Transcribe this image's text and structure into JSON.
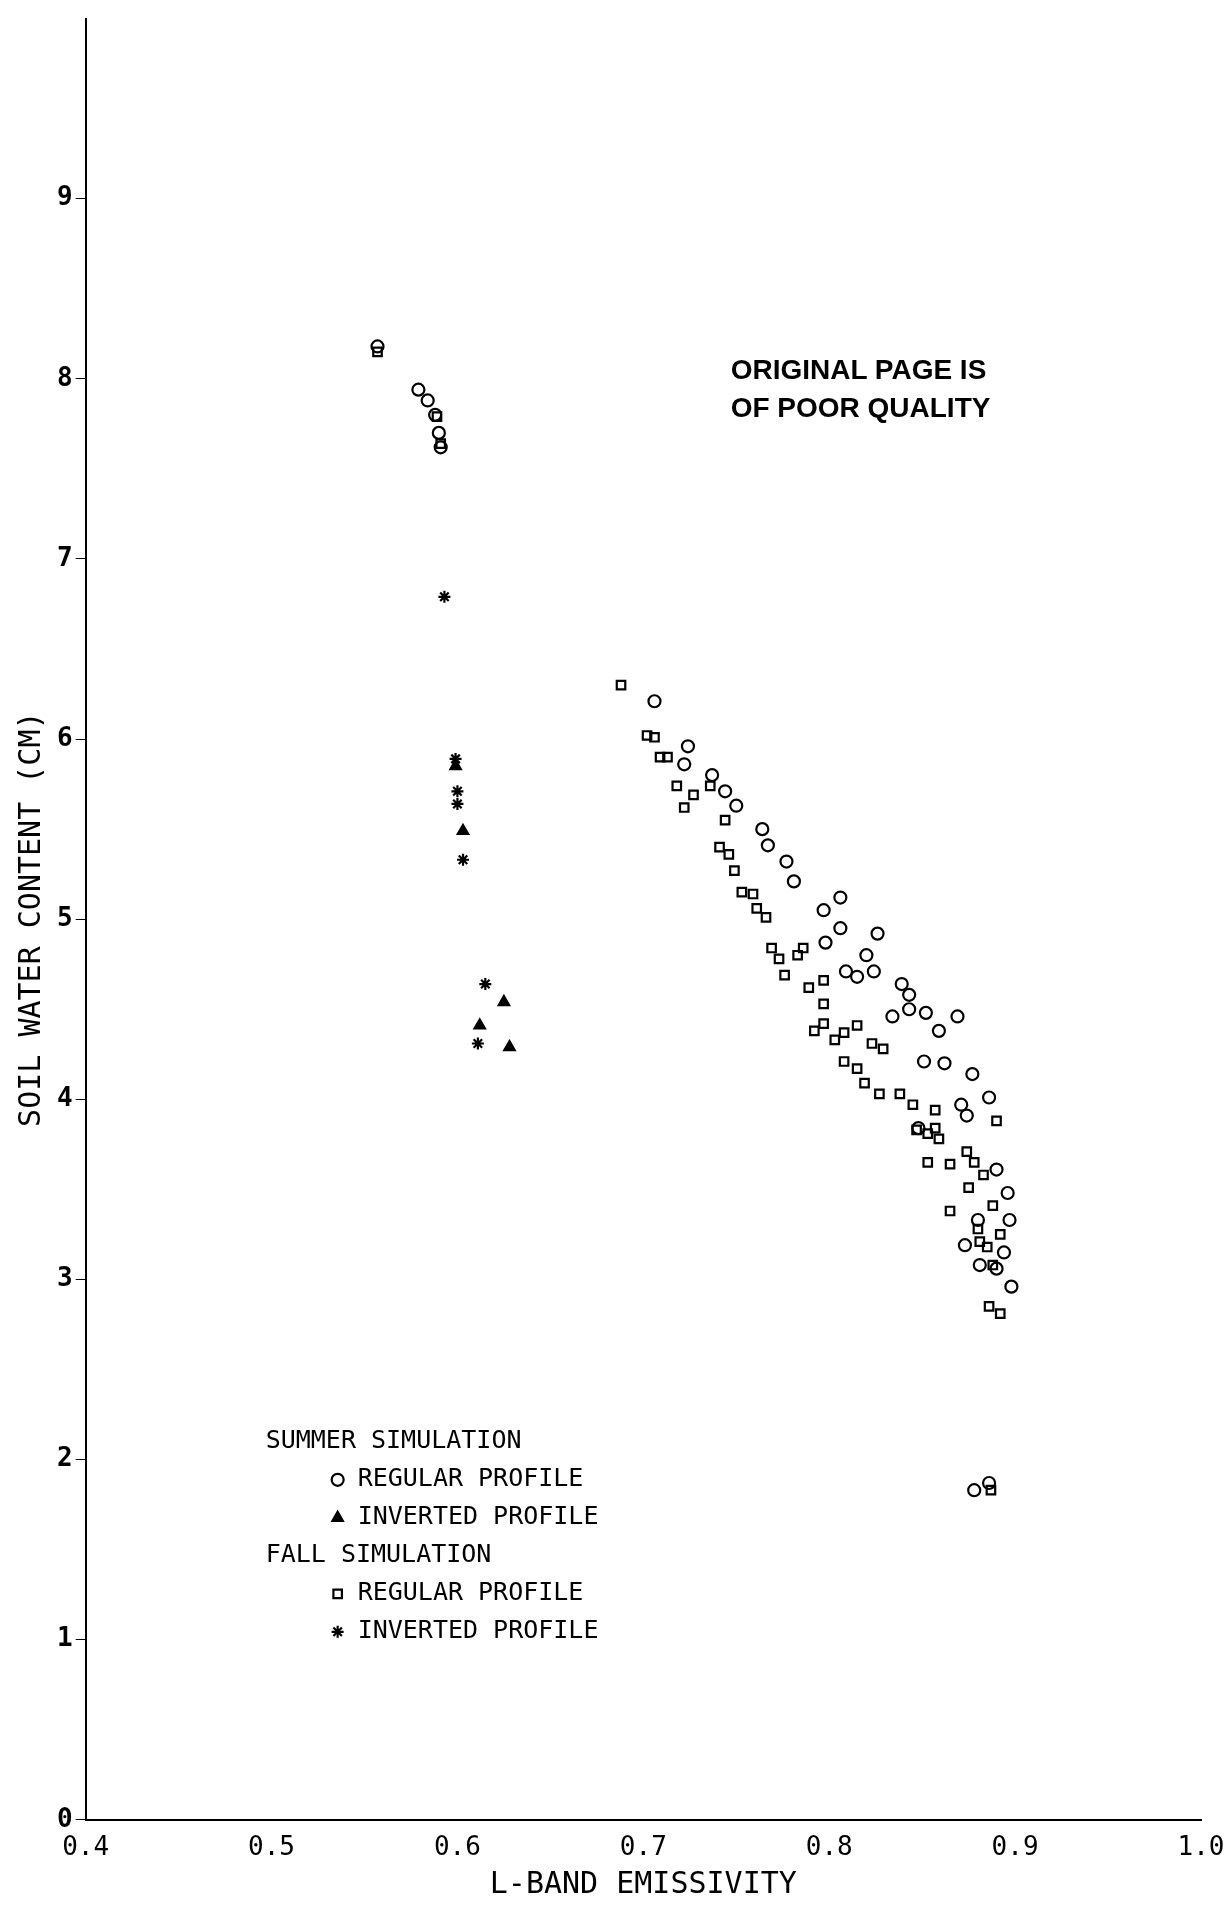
{
  "chart_data": {
    "type": "scatter",
    "xlabel": "L-BAND EMISSIVITY",
    "ylabel": "SOIL WATER CONTENT (CM)",
    "xlim": [
      0.4,
      1.0
    ],
    "xticks": [
      0.4,
      0.5,
      0.6,
      0.7,
      0.8,
      0.9,
      {
        "value": 1.0,
        "label": "1.0"
      }
    ],
    "ylim": [
      0,
      10
    ],
    "yticks": [
      0,
      1,
      2,
      3,
      4,
      5,
      6,
      7,
      8,
      9
    ],
    "grid": false,
    "legend": "bottom left",
    "annotations": [
      "SUMMER SIMULATION",
      "FALL SIMULATION",
      "ORIGINAL PAGE IS OF POOR QUALITY"
    ],
    "series": [
      {
        "name": "REGULAR PROFILE",
        "color": "#000000",
        "marker": "circle",
        "x": [
          0.557,
          0.579,
          0.584,
          0.588,
          0.59,
          0.591,
          0.706,
          0.724,
          0.722,
          0.737,
          0.744,
          0.75,
          0.764,
          0.767,
          0.777,
          0.781,
          0.806,
          0.797,
          0.806,
          0.798,
          0.826,
          0.82,
          0.809,
          0.824,
          0.815,
          0.839,
          0.843,
          0.834,
          0.843,
          0.852,
          0.869,
          0.859,
          0.851,
          0.862,
          0.877,
          0.871,
          0.848,
          0.874,
          0.886,
          0.89,
          0.896,
          0.897,
          0.894,
          0.89,
          0.898,
          0.881,
          0.878,
          0.886,
          0.873,
          0.88
        ],
        "values": [
          8.18,
          7.94,
          7.88,
          7.8,
          7.7,
          7.62,
          6.21,
          5.96,
          5.86,
          5.8,
          5.71,
          5.63,
          5.5,
          5.41,
          5.32,
          5.21,
          5.12,
          5.05,
          4.95,
          4.87,
          4.92,
          4.8,
          4.71,
          4.71,
          4.68,
          4.64,
          4.58,
          4.46,
          4.5,
          4.48,
          4.46,
          4.38,
          4.21,
          4.2,
          4.14,
          3.97,
          3.84,
          3.91,
          4.01,
          3.61,
          3.48,
          3.33,
          3.15,
          3.06,
          2.96,
          3.08,
          1.83,
          1.87,
          3.19,
          3.33
        ]
      },
      {
        "name": "INVERTED PROFILE",
        "color": "#000000",
        "marker": "triangle",
        "x": [
          0.599,
          0.603,
          0.612,
          0.625,
          0.628
        ],
        "values": [
          5.85,
          5.49,
          4.41,
          4.54,
          4.29
        ]
      },
      {
        "name": "REGULAR PROFILE",
        "color": "#000000",
        "marker": "square",
        "x": [
          0.557,
          0.589,
          0.591,
          0.688,
          0.702,
          0.706,
          0.709,
          0.713,
          0.718,
          0.722,
          0.727,
          0.736,
          0.744,
          0.741,
          0.746,
          0.749,
          0.753,
          0.759,
          0.761,
          0.766,
          0.769,
          0.773,
          0.776,
          0.783,
          0.786,
          0.789,
          0.797,
          0.797,
          0.792,
          0.797,
          0.803,
          0.808,
          0.815,
          0.808,
          0.815,
          0.819,
          0.827,
          0.823,
          0.829,
          0.838,
          0.845,
          0.847,
          0.853,
          0.857,
          0.857,
          0.859,
          0.853,
          0.865,
          0.865,
          0.874,
          0.878,
          0.883,
          0.875,
          0.88,
          0.885,
          0.888,
          0.886,
          0.892,
          0.89,
          0.888,
          0.881,
          0.892,
          0.887
        ],
        "values": [
          8.15,
          7.79,
          7.64,
          6.3,
          6.02,
          6.01,
          5.9,
          5.9,
          5.74,
          5.62,
          5.69,
          5.74,
          5.55,
          5.4,
          5.36,
          5.27,
          5.15,
          5.14,
          5.06,
          5.01,
          4.84,
          4.78,
          4.69,
          4.8,
          4.84,
          4.62,
          4.66,
          4.53,
          4.38,
          4.42,
          4.33,
          4.37,
          4.41,
          4.21,
          4.17,
          4.09,
          4.03,
          4.31,
          4.28,
          4.03,
          3.97,
          3.83,
          3.81,
          3.94,
          3.84,
          3.78,
          3.65,
          3.64,
          3.38,
          3.71,
          3.65,
          3.58,
          3.51,
          3.28,
          3.18,
          3.08,
          2.85,
          2.81,
          3.88,
          3.41,
          3.21,
          3.25,
          1.83
        ]
      },
      {
        "name": "INVERTED PROFILE",
        "color": "#000000",
        "marker": "cross",
        "x": [
          0.593,
          0.599,
          0.6,
          0.6,
          0.603,
          0.615,
          0.611
        ],
        "values": [
          6.79,
          5.89,
          5.71,
          5.64,
          5.33,
          4.64,
          4.31
        ]
      }
    ]
  }
}
